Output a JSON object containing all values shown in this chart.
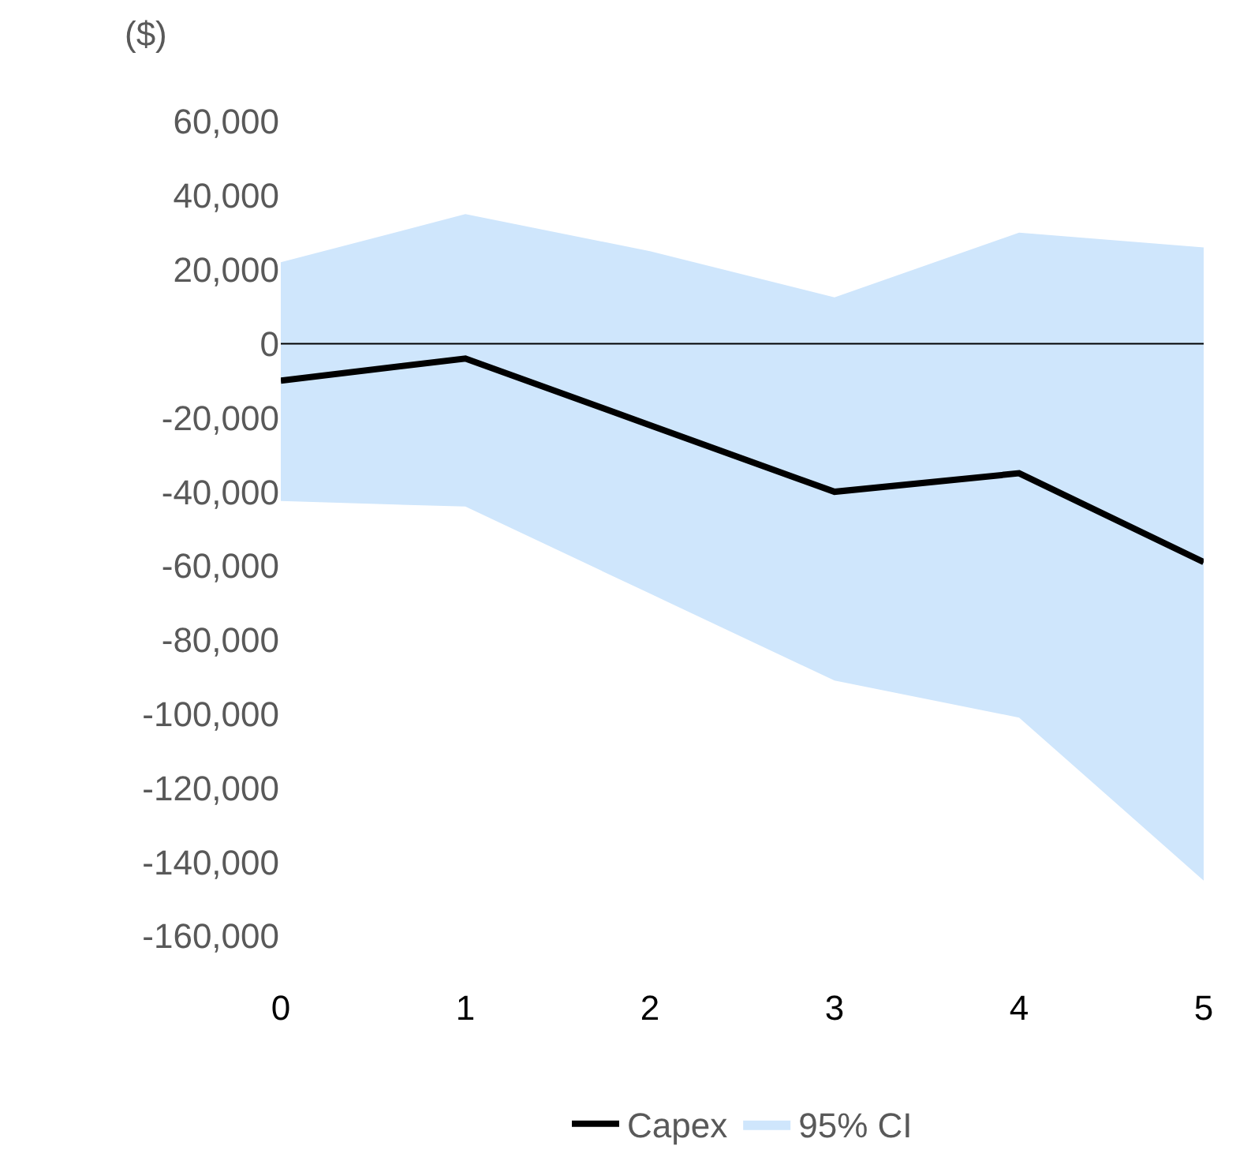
{
  "chart_data": {
    "type": "line",
    "ylabel": "($)",
    "categories": [
      "0",
      "1",
      "2",
      "3",
      "4",
      "5"
    ],
    "series": [
      {
        "name": "Capex",
        "color": "#000000",
        "values": [
          -10000,
          -4000,
          -22000,
          -40000,
          -35000,
          -59000
        ],
        "lower": [
          -42500,
          -44000,
          -67500,
          -91000,
          -101000,
          -145000
        ],
        "upper": [
          22000,
          35000,
          25000,
          12500,
          30000,
          26000
        ]
      }
    ],
    "annotations": [
      "95% CI"
    ],
    "ylim": [
      -160000,
      60000
    ],
    "yticks": [
      {
        "value": -160000,
        "label": "-160,000"
      },
      {
        "value": -140000,
        "label": "-140,000"
      },
      {
        "value": -120000,
        "label": "-120,000"
      },
      {
        "value": -100000,
        "label": "-100,000"
      },
      {
        "value": -80000,
        "label": "-80,000"
      },
      {
        "value": -60000,
        "label": "-60,000"
      },
      {
        "value": -40000,
        "label": "-40,000"
      },
      {
        "value": -20000,
        "label": "-20,000"
      },
      0,
      {
        "value": 20000,
        "label": "20,000"
      },
      {
        "value": 40000,
        "label": "40,000"
      },
      {
        "value": 60000,
        "label": "60,000"
      }
    ],
    "ref_lines": [
      {
        "axis": "y",
        "value": 0,
        "color": "#000000"
      }
    ],
    "legend": "bottom",
    "marker": "none",
    "line_style": "solid"
  }
}
